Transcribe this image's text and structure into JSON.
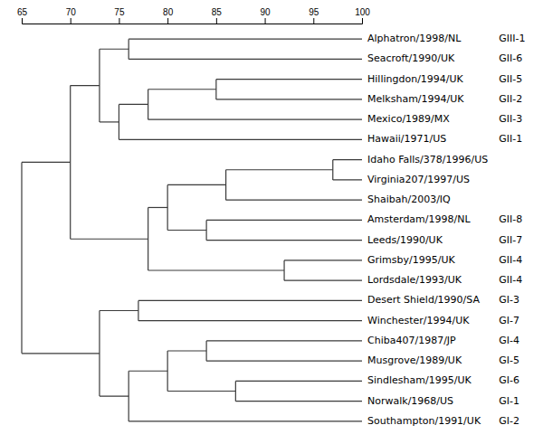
{
  "chart_data": {
    "type": "dendrogram",
    "color": "#3a3a3a",
    "xlim": [
      65,
      100
    ],
    "xticks": [
      65,
      70,
      75,
      80,
      85,
      90,
      95,
      100
    ],
    "tree": {
      "value": 65,
      "children": [
        {
          "value": 70,
          "children": [
            {
              "value": 73,
              "children": [
                {
                  "value": 76,
                  "children": [
                    {
                      "name": "Alphatron/1998/NL",
                      "genotype": "GIII-1"
                    },
                    {
                      "name": "Seacroft/1990/UK",
                      "genotype": "GII-6"
                    }
                  ]
                },
                {
                  "value": 75,
                  "children": [
                    {
                      "value": 78,
                      "children": [
                        {
                          "value": 85,
                          "children": [
                            {
                              "name": "Hillingdon/1994/UK",
                              "genotype": "GII-5"
                            },
                            {
                              "name": "Melksham/1994/UK",
                              "genotype": "GII-2"
                            }
                          ]
                        },
                        {
                          "name": "Mexico/1989/MX",
                          "genotype": "GII-3"
                        }
                      ]
                    },
                    {
                      "name": "Hawaii/1971/US",
                      "genotype": "GII-1"
                    }
                  ]
                }
              ]
            },
            {
              "value": 78,
              "children": [
                {
                  "value": 80,
                  "children": [
                    {
                      "value": 86,
                      "children": [
                        {
                          "value": 97,
                          "children": [
                            {
                              "name": "Idaho Falls/378/1996/US",
                              "genotype": null
                            },
                            {
                              "name": "Virginia207/1997/US",
                              "genotype": null
                            }
                          ]
                        },
                        {
                          "name": "Shaibah/2003/IQ",
                          "genotype": null
                        }
                      ]
                    },
                    {
                      "value": 84,
                      "children": [
                        {
                          "name": "Amsterdam/1998/NL",
                          "genotype": "GII-8"
                        },
                        {
                          "name": "Leeds/1990/UK",
                          "genotype": "GII-7"
                        }
                      ]
                    }
                  ]
                },
                {
                  "value": 92,
                  "children": [
                    {
                      "name": "Grimsby/1995/UK",
                      "genotype": "GII-4"
                    },
                    {
                      "name": "Lordsdale/1993/UK",
                      "genotype": "GII-4"
                    }
                  ]
                }
              ]
            }
          ]
        },
        {
          "value": 73,
          "children": [
            {
              "value": 77,
              "children": [
                {
                  "name": "Desert Shield/1990/SA",
                  "genotype": "GI-3"
                },
                {
                  "name": "Winchester/1994/UK",
                  "genotype": "GI-7"
                }
              ]
            },
            {
              "value": 76,
              "children": [
                {
                  "value": 80,
                  "children": [
                    {
                      "value": 84,
                      "children": [
                        {
                          "name": "Chiba407/1987/JP",
                          "genotype": "GI-4"
                        },
                        {
                          "name": "Musgrove/1989/UK",
                          "genotype": "GI-5"
                        }
                      ]
                    },
                    {
                      "value": 87,
                      "children": [
                        {
                          "name": "Sindlesham/1995/UK",
                          "genotype": "GI-6"
                        },
                        {
                          "name": "Norwalk/1968/US",
                          "genotype": "GI-1"
                        }
                      ]
                    }
                  ]
                },
                {
                  "name": "Southampton/1991/UK",
                  "genotype": "GI-2"
                }
              ]
            }
          ]
        }
      ]
    }
  }
}
